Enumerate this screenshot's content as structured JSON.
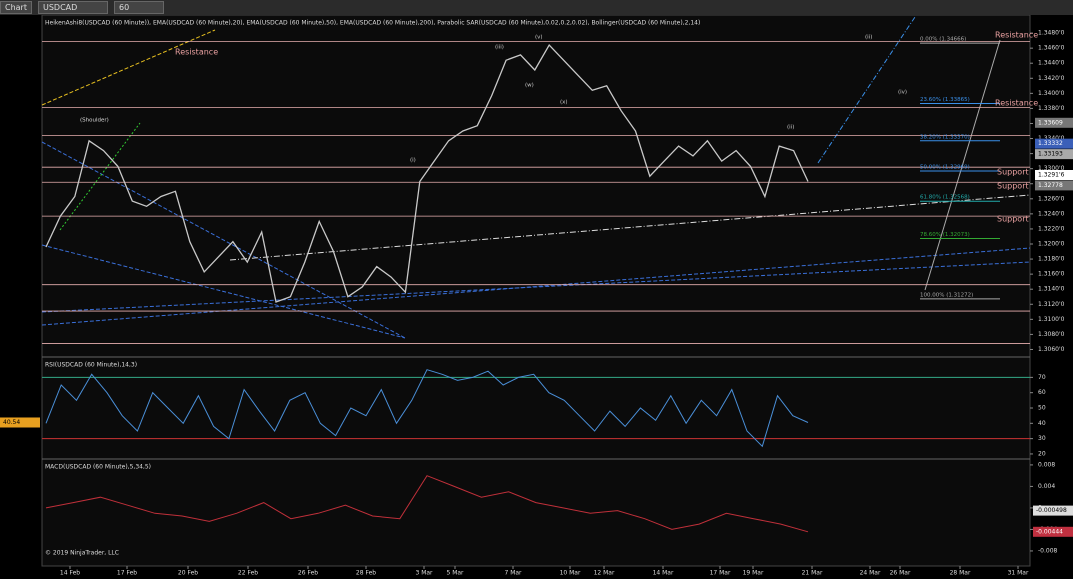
{
  "toolbar": {
    "title": "Chart",
    "instrument": "USDCAD",
    "interval": "60 Minute"
  },
  "x_labels": [
    "14 Feb",
    "17 Feb",
    "20 Feb",
    "22 Feb",
    "26 Feb",
    "28 Feb",
    "3 Mar",
    "5 Mar",
    "7 Mar",
    "10 Mar",
    "12 Mar",
    "14 Mar",
    "17 Mar",
    "19 Mar",
    "21 Mar",
    "24 Mar",
    "26 Mar",
    "28 Mar",
    "31 Mar"
  ],
  "copyright": "© 2019 NinjaTrader, LLC",
  "chart_data": [
    {
      "type": "line",
      "title": "HeikenAshi8(USDCAD (60 Minute)), EMA(USDCAD (60 Minute),20), EMA(USDCAD (60 Minute),50), EMA(USDCAD (60 Minute),200), Parabolic SAR(USDCAD (60 Minute),0.02,0.2,0.02), Bollinger(USDCAD (60 Minute),2,14)",
      "ylim": [
        1.305,
        1.3504
      ],
      "yticks": [
        {
          "value": 1.348,
          "label": "1.3480'0"
        },
        {
          "value": 1.346,
          "label": "1.3460'0"
        },
        {
          "value": 1.344,
          "label": "1.3440'0"
        },
        {
          "value": 1.342,
          "label": "1.3420'0"
        },
        {
          "value": 1.34,
          "label": "1.3400'0"
        },
        {
          "value": 1.338,
          "label": "1.3380'0"
        },
        {
          "value": 1.336,
          "label": "1.3360'0"
        },
        {
          "value": 1.334,
          "label": "1.3340'0"
        },
        {
          "value": 1.332,
          "label": "1.3320'0"
        },
        {
          "value": 1.33,
          "label": "1.3300'0"
        },
        {
          "value": 1.328,
          "label": "1.3280'0"
        },
        {
          "value": 1.326,
          "label": "1.3260'0"
        },
        {
          "value": 1.324,
          "label": "1.3240'0"
        },
        {
          "value": 1.322,
          "label": "1.3220'0"
        },
        {
          "value": 1.32,
          "label": "1.3200'0"
        },
        {
          "value": 1.318,
          "label": "1.3180'0"
        },
        {
          "value": 1.316,
          "label": "1.3160'0"
        },
        {
          "value": 1.314,
          "label": "1.3140'0"
        },
        {
          "value": 1.312,
          "label": "1.3120'0"
        },
        {
          "value": 1.31,
          "label": "1.3100'0"
        },
        {
          "value": 1.308,
          "label": "1.3080'0"
        },
        {
          "value": 1.306,
          "label": "1.3060'0"
        }
      ],
      "series": [
        {
          "name": "USDCAD",
          "color": "#c9c9c9",
          "values": [
            1.3196,
            1.3237,
            1.3263,
            1.3337,
            1.3324,
            1.3303,
            1.3257,
            1.325,
            1.3263,
            1.327,
            1.3203,
            1.3163,
            1.3183,
            1.3203,
            1.3176,
            1.3216,
            1.3123,
            1.313,
            1.3176,
            1.323,
            1.319,
            1.313,
            1.3143,
            1.317,
            1.3156,
            1.3136,
            1.3283,
            1.331,
            1.3337,
            1.335,
            1.3357,
            1.3397,
            1.3444,
            1.3451,
            1.3431,
            1.3464,
            1.3444,
            1.3424,
            1.3404,
            1.341,
            1.3377,
            1.335,
            1.329,
            1.331,
            1.333,
            1.3317,
            1.3337,
            1.331,
            1.3324,
            1.3303,
            1.3263,
            1.333,
            1.3324,
            1.3283
          ]
        }
      ],
      "levels": [
        1.3469,
        1.3381,
        1.3344,
        1.3302,
        1.3282,
        1.3237,
        1.3146,
        1.3111,
        1.3068
      ],
      "fib": [
        {
          "value": 1.34666,
          "label": "0.00% (1.34666)"
        },
        {
          "value": 1.33865,
          "label": "23.60% (1.33865)"
        },
        {
          "value": 1.3337,
          "label": "38.20% (1.33370)"
        },
        {
          "value": 1.32969,
          "label": "50.00% (1.32969)"
        },
        {
          "value": 1.32568,
          "label": "61.80% (1.32568)"
        },
        {
          "value": 1.32073,
          "label": "78.60% (1.32073)"
        },
        {
          "value": 1.31272,
          "label": "100.00% (1.31272)"
        }
      ],
      "markers": [
        {
          "value": 1.33609,
          "label": "1.33609"
        },
        {
          "value": 1.33332,
          "label": "1.33332"
        },
        {
          "value": 1.33193,
          "label": "1.33193"
        },
        {
          "value": 1.32916,
          "label": "1.3291'6"
        },
        {
          "value": 1.32778,
          "label": "1.32778"
        }
      ],
      "annotations": [
        "Resistance",
        "Resistance",
        "Resistance",
        "Support",
        "Support",
        "Support",
        "(Shoulder)",
        "(ii)",
        "(iv)",
        "(i)",
        "(iii)",
        "(v)",
        "(w)",
        "(x)",
        "(ii)"
      ]
    },
    {
      "type": "line",
      "title": "RSI(USDCAD (60 Minute),14,3)",
      "ylim": [
        16.7,
        83.3
      ],
      "yticks": [
        70,
        60,
        50,
        40,
        30,
        20
      ],
      "series": [
        {
          "name": "RSI",
          "color": "#4a8fd8",
          "values": [
            40,
            65,
            55,
            72,
            60,
            45,
            35,
            60,
            50,
            40,
            58,
            38,
            30,
            62,
            48,
            35,
            55,
            60,
            40,
            32,
            50,
            45,
            62,
            40,
            55,
            75,
            72,
            68,
            70,
            74,
            65,
            70,
            72,
            60,
            55,
            45,
            35,
            48,
            38,
            50,
            42,
            58,
            40,
            55,
            45,
            62,
            35,
            25,
            58,
            45,
            40.54
          ]
        }
      ],
      "current": {
        "value": 40.54,
        "label": "40.54"
      }
    },
    {
      "type": "line",
      "title": "MACD(USDCAD (60 Minute),5,34,5)",
      "ylim": [
        -0.0108,
        0.0091
      ],
      "yticks": [
        0.008,
        0.004,
        0,
        -0.004,
        -0.008
      ],
      "series": [
        {
          "name": "MACD",
          "color": "#c0303a",
          "values": [
            0,
            0.001,
            0.002,
            0.0005,
            -0.001,
            -0.0015,
            -0.0025,
            -0.001,
            0.001,
            -0.002,
            -0.001,
            0.0005,
            -0.0015,
            -0.002,
            0.006,
            0.004,
            0.002,
            0.003,
            0.001,
            0,
            -0.001,
            -0.0005,
            -0.002,
            -0.004,
            -0.003,
            -0.001,
            -0.002,
            -0.003,
            -0.00444
          ]
        }
      ],
      "current": [
        {
          "value": -0.000498,
          "label": "-0.000498"
        },
        {
          "value": -0.00444,
          "label": "-0.00444"
        }
      ]
    }
  ]
}
